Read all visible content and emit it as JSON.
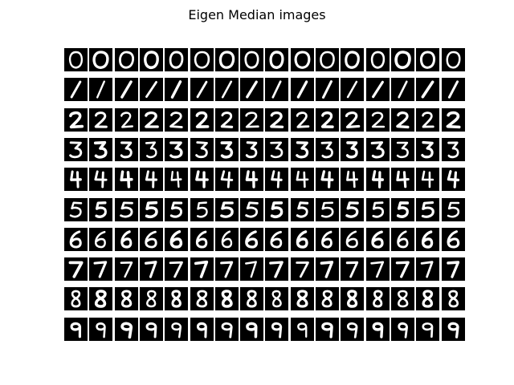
{
  "title": "Eigen Median images",
  "digits": [
    "0",
    "1",
    "2",
    "3",
    "4",
    "5",
    "6",
    "7",
    "8",
    "9"
  ],
  "columns_per_row": 16,
  "colors": {
    "tile_background": "#000000",
    "stroke": "#ffffff",
    "page_background": "#ffffff"
  }
}
